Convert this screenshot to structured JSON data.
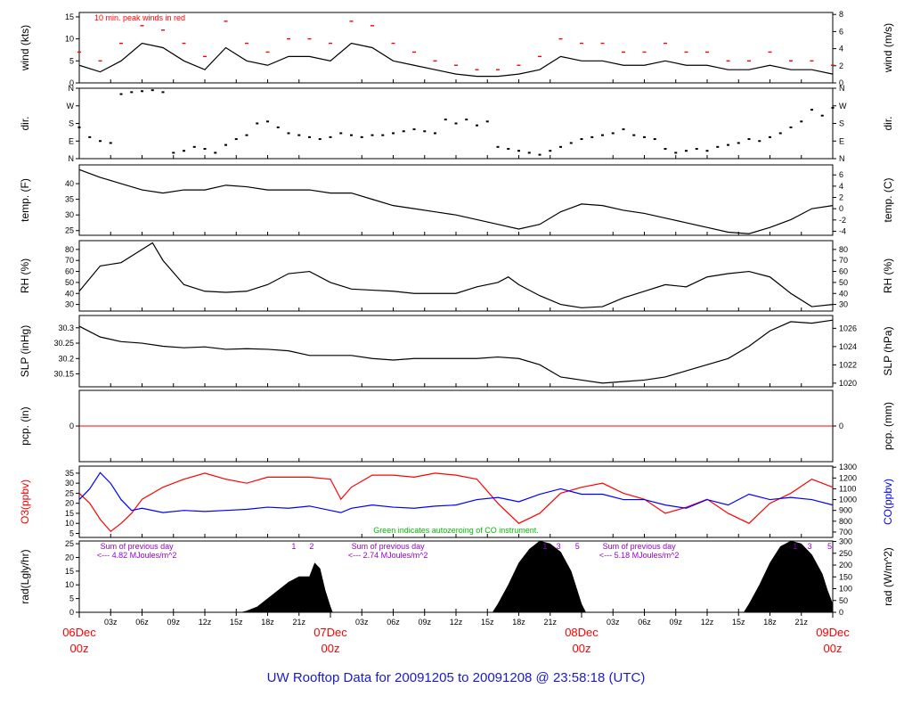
{
  "figure_title": "UW Rooftop Data for 20091205  to  20091208 @ 23:58:18  (UTC)",
  "colors": {
    "frame": "#000000",
    "red": "#ff0000",
    "blue": "#0000ff",
    "green": "#00bb00",
    "purple": "#9900cc",
    "title": "#1a1acc"
  },
  "time_axis": {
    "range_hours": [
      0,
      72
    ],
    "minor_labels": [
      "03z",
      "06z",
      "09z",
      "12z",
      "15z",
      "18z",
      "21z",
      "03z",
      "06z",
      "09z",
      "12z",
      "15z",
      "18z",
      "21z",
      "03z",
      "06z",
      "09z",
      "12z",
      "15z",
      "18z",
      "21z"
    ],
    "minor_hours": [
      3,
      6,
      9,
      12,
      15,
      18,
      21,
      27,
      30,
      33,
      36,
      39,
      42,
      45,
      51,
      54,
      57,
      60,
      63,
      66,
      69
    ],
    "major_labels": [
      {
        "date": "06Dec",
        "hour": "00z",
        "t": 0
      },
      {
        "date": "07Dec",
        "hour": "00z",
        "t": 24
      },
      {
        "date": "08Dec",
        "hour": "00z",
        "t": 48
      },
      {
        "date": "09Dec",
        "hour": "00z",
        "t": 72
      }
    ]
  },
  "chart_data": [
    {
      "type": "line",
      "id": "wind",
      "ylabel": "wind (kts)",
      "ylabel_right": "wind (m/s)",
      "ylim": [
        0,
        16
      ],
      "yticks": [
        0,
        5,
        10,
        15
      ],
      "ylim_right": [
        0,
        8.23
      ],
      "yticks_right": [
        0,
        2,
        4,
        6,
        8
      ],
      "annotation": "10 min. peak winds in red",
      "series": [
        {
          "name": "wind speed",
          "color": "#000000",
          "x": [
            0,
            2,
            4,
            6,
            8,
            10,
            12,
            14,
            16,
            18,
            20,
            22,
            24,
            26,
            28,
            30,
            32,
            34,
            36,
            38,
            40,
            42,
            44,
            46,
            48,
            50,
            52,
            54,
            56,
            58,
            60,
            62,
            64,
            66,
            68,
            70,
            72
          ],
          "y": [
            4,
            2.5,
            5,
            9,
            8,
            5,
            3,
            8,
            5,
            4,
            6,
            6,
            5,
            9,
            8,
            5,
            4,
            3,
            2,
            1.5,
            1.5,
            2,
            3,
            6,
            5,
            5,
            4,
            4,
            5,
            4,
            4,
            3,
            3,
            4,
            3,
            3,
            2
          ]
        }
      ],
      "peaks": {
        "name": "10 min. peak winds",
        "color": "#ff0000",
        "x": [
          0,
          2,
          4,
          6,
          8,
          10,
          12,
          14,
          16,
          18,
          20,
          22,
          24,
          26,
          28,
          30,
          32,
          34,
          36,
          38,
          40,
          42,
          44,
          46,
          48,
          50,
          52,
          54,
          56,
          58,
          60,
          62,
          64,
          66,
          68,
          70,
          72
        ],
        "y": [
          7,
          5,
          9,
          13,
          12,
          9,
          6,
          14,
          9,
          7,
          10,
          10,
          9,
          14,
          13,
          9,
          7,
          5,
          4,
          3,
          3,
          4,
          6,
          10,
          9,
          9,
          7,
          7,
          9,
          7,
          7,
          5,
          5,
          7,
          5,
          5,
          4
        ]
      }
    },
    {
      "type": "scatter",
      "id": "dir",
      "ylabel": "dir.",
      "ylabel_right": "dir.",
      "ylim": [
        0,
        360
      ],
      "ytick_labels": [
        "N",
        "E",
        "S",
        "W",
        "N"
      ],
      "ytick_values": [
        0,
        90,
        180,
        270,
        360
      ],
      "series": [
        {
          "name": "wind direction",
          "color": "#000000",
          "x": [
            0,
            1,
            2,
            3,
            4,
            5,
            6,
            7,
            8,
            9,
            10,
            11,
            12,
            13,
            14,
            15,
            16,
            17,
            18,
            19,
            20,
            21,
            22,
            23,
            24,
            25,
            26,
            27,
            28,
            29,
            30,
            31,
            32,
            33,
            34,
            35,
            36,
            37,
            38,
            39,
            40,
            41,
            42,
            43,
            44,
            45,
            46,
            47,
            48,
            49,
            50,
            51,
            52,
            53,
            54,
            55,
            56,
            57,
            58,
            59,
            60,
            61,
            62,
            63,
            64,
            65,
            66,
            67,
            68,
            69,
            70,
            71,
            72
          ],
          "y": [
            160,
            110,
            90,
            80,
            330,
            340,
            345,
            350,
            340,
            30,
            40,
            60,
            50,
            30,
            70,
            100,
            120,
            180,
            190,
            160,
            130,
            120,
            110,
            100,
            110,
            130,
            120,
            110,
            120,
            120,
            130,
            140,
            150,
            140,
            130,
            200,
            180,
            200,
            170,
            190,
            60,
            50,
            40,
            30,
            20,
            40,
            60,
            80,
            100,
            110,
            120,
            130,
            150,
            120,
            110,
            100,
            50,
            30,
            40,
            50,
            40,
            60,
            70,
            80,
            100,
            90,
            110,
            130,
            160,
            190,
            250,
            220,
            260
          ]
        }
      ]
    },
    {
      "type": "line",
      "id": "temp",
      "ylabel": "temp. (F)",
      "ylabel_right": "temp. (C)",
      "ylim": [
        23.5,
        46
      ],
      "yticks": [
        25,
        30,
        35,
        40
      ],
      "ylim_right": [
        -4.72,
        7.78
      ],
      "yticks_right": [
        -4,
        -2,
        0,
        2,
        4,
        6
      ],
      "series": [
        {
          "name": "temperature",
          "color": "#000000",
          "x": [
            0,
            2,
            4,
            6,
            8,
            10,
            12,
            14,
            16,
            18,
            20,
            22,
            24,
            26,
            28,
            30,
            32,
            34,
            36,
            38,
            40,
            42,
            44,
            46,
            48,
            50,
            52,
            54,
            56,
            58,
            60,
            62,
            64,
            66,
            68,
            70,
            72
          ],
          "y": [
            44.5,
            42,
            40,
            38,
            37,
            38,
            38,
            39.5,
            39,
            38,
            38,
            38,
            37,
            37,
            35,
            33,
            32,
            31,
            30,
            28.5,
            27,
            25.5,
            27,
            31,
            33.5,
            33,
            31.5,
            30.5,
            29,
            27.5,
            26,
            24.5,
            24,
            26,
            28.5,
            32,
            33
          ]
        }
      ]
    },
    {
      "type": "line",
      "id": "rh",
      "ylabel": "RH (%)",
      "ylabel_right": "RH (%)",
      "ylim": [
        24,
        88
      ],
      "yticks": [
        30,
        40,
        50,
        60,
        70,
        80
      ],
      "yticks_right": [
        30,
        40,
        50,
        60,
        70,
        80
      ],
      "series": [
        {
          "name": "relative humidity",
          "color": "#000000",
          "x": [
            0,
            2,
            4,
            6,
            7,
            8,
            10,
            12,
            14,
            16,
            18,
            20,
            22,
            24,
            26,
            28,
            30,
            32,
            34,
            36,
            38,
            40,
            41,
            42,
            44,
            46,
            48,
            50,
            52,
            54,
            56,
            58,
            60,
            62,
            64,
            66,
            68,
            70,
            72
          ],
          "y": [
            42,
            65,
            68,
            80,
            86,
            70,
            48,
            42,
            41,
            42,
            48,
            58,
            60,
            50,
            44,
            43,
            42,
            40,
            40,
            40,
            46,
            50,
            55,
            48,
            38,
            30,
            27,
            28,
            36,
            42,
            48,
            46,
            55,
            58,
            60,
            55,
            40,
            28,
            30
          ]
        }
      ]
    },
    {
      "type": "line",
      "id": "slp",
      "ylabel": "SLP (inHg)",
      "ylabel_right": "SLP (hPa)",
      "ylim": [
        30.108,
        30.34
      ],
      "yticks": [
        30.15,
        30.2,
        30.25,
        30.3
      ],
      "ylim_right": [
        1019.6,
        1027.4
      ],
      "yticks_right": [
        1020,
        1022,
        1024,
        1026
      ],
      "series": [
        {
          "name": "sea level pressure",
          "color": "#000000",
          "x": [
            0,
            2,
            4,
            6,
            8,
            10,
            12,
            14,
            16,
            18,
            20,
            22,
            24,
            26,
            28,
            30,
            32,
            34,
            36,
            38,
            40,
            42,
            44,
            46,
            48,
            50,
            52,
            54,
            56,
            58,
            60,
            62,
            64,
            66,
            68,
            70,
            72
          ],
          "y": [
            30.305,
            30.27,
            30.255,
            30.25,
            30.24,
            30.235,
            30.238,
            30.23,
            30.232,
            30.23,
            30.225,
            30.21,
            30.21,
            30.21,
            30.2,
            30.195,
            30.2,
            30.2,
            30.2,
            30.2,
            30.205,
            30.2,
            30.18,
            30.14,
            30.13,
            30.12,
            30.125,
            30.13,
            30.14,
            30.16,
            30.18,
            30.2,
            30.24,
            30.29,
            30.32,
            30.315,
            30.325
          ]
        }
      ]
    },
    {
      "type": "line",
      "id": "pcp",
      "ylabel": "pcp. (in)",
      "ylabel_right": "pcp. (mm)",
      "ylim": [
        -1,
        1
      ],
      "yticks": [
        0
      ],
      "yticks_right": [
        0
      ],
      "series": [
        {
          "name": "precipitation",
          "color": "#ff0000",
          "x": [
            0,
            72
          ],
          "y": [
            0,
            0
          ]
        }
      ]
    },
    {
      "type": "line",
      "id": "chem",
      "ylabel": "O3(ppbv)",
      "ylabel_right": "CO(ppbv)",
      "ylim": [
        3,
        38.5
      ],
      "yticks": [
        5,
        10,
        15,
        20,
        25,
        30,
        35
      ],
      "ylim_right": [
        650,
        1310
      ],
      "yticks_right": [
        700,
        800,
        900,
        1000,
        1100,
        1200,
        1300
      ],
      "annotation": "Green indicates autozeroing of CO instrument.",
      "series": [
        {
          "name": "O3",
          "axis": "left",
          "color": "#ff0000",
          "x": [
            0,
            1,
            2,
            3,
            4,
            5,
            6,
            8,
            10,
            12,
            14,
            16,
            18,
            20,
            22,
            24,
            25,
            26,
            28,
            30,
            32,
            34,
            36,
            38,
            40,
            42,
            44,
            46,
            48,
            50,
            52,
            54,
            56,
            58,
            60,
            62,
            64,
            66,
            68,
            70,
            72
          ],
          "y": [
            25,
            20,
            12,
            6,
            10,
            15,
            22,
            28,
            32,
            35,
            32,
            30,
            33,
            33,
            33,
            32,
            22,
            28,
            34,
            34,
            33,
            35,
            34,
            32,
            20,
            10,
            15,
            25,
            28,
            30,
            25,
            22,
            15,
            18,
            22,
            15,
            10,
            20,
            25,
            32,
            28
          ]
        },
        {
          "name": "CO",
          "axis": "right",
          "color": "#0000ff",
          "x": [
            0,
            1,
            2,
            3,
            4,
            5,
            6,
            8,
            10,
            12,
            14,
            16,
            18,
            20,
            22,
            24,
            25,
            26,
            28,
            30,
            32,
            34,
            36,
            38,
            40,
            42,
            44,
            46,
            48,
            50,
            52,
            54,
            56,
            58,
            60,
            62,
            64,
            66,
            68,
            70,
            72
          ],
          "y": [
            1000,
            1100,
            1250,
            1150,
            1000,
            900,
            920,
            880,
            900,
            890,
            900,
            910,
            930,
            920,
            940,
            900,
            880,
            920,
            950,
            930,
            920,
            940,
            950,
            1000,
            1020,
            980,
            1050,
            1100,
            1050,
            1050,
            1000,
            1000,
            950,
            920,
            1000,
            950,
            1050,
            1000,
            1020,
            1000,
            950
          ]
        }
      ]
    },
    {
      "type": "area",
      "id": "rad",
      "ylabel": "rad(Lgly/hr)",
      "ylabel_right": "rad (W/m^2)",
      "ylim": [
        0,
        26
      ],
      "yticks": [
        0,
        5,
        10,
        15,
        20,
        25
      ],
      "ylim_right": [
        0,
        302
      ],
      "yticks_right": [
        0,
        50,
        100,
        150,
        200,
        250,
        300
      ],
      "series": [
        {
          "name": "solar radiation",
          "color": "#000000",
          "x": [
            0,
            15.5,
            16,
            17,
            18,
            19,
            20,
            21,
            22,
            22.5,
            23,
            23.5,
            24,
            24.2,
            39.5,
            40,
            41,
            42,
            43,
            44,
            45,
            46,
            47,
            47.5,
            48,
            48.4,
            63.5,
            64,
            65,
            66,
            67,
            68,
            69,
            70,
            71,
            71.5,
            72
          ],
          "y": [
            0,
            0,
            0.5,
            2,
            5,
            8,
            11,
            13,
            13,
            18,
            16,
            8,
            2,
            0,
            0,
            3,
            10,
            18,
            23,
            26,
            25,
            22,
            15,
            9,
            3,
            0,
            0,
            3,
            10,
            18,
            24,
            26,
            25,
            21,
            14,
            8,
            3
          ]
        }
      ],
      "annotations": [
        {
          "text": "Sum of previous day",
          "t": 5.5,
          "row": 0
        },
        {
          "text": "<--- 4.82 MJoules/m^2",
          "t": 5.5,
          "row": 1
        },
        {
          "text": "Sum of previous day",
          "t": 29.5,
          "row": 0
        },
        {
          "text": "<--- 2.74 MJoules/m^2",
          "t": 29.5,
          "row": 1
        },
        {
          "text": "Sum of previous day",
          "t": 53.5,
          "row": 0
        },
        {
          "text": "<--- 5.18 MJoules/m^2",
          "t": 53.5,
          "row": 1
        }
      ],
      "markers": [
        {
          "label": "1",
          "t": 20.5
        },
        {
          "label": "2",
          "t": 22.2
        },
        {
          "label": "1",
          "t": 44.5
        },
        {
          "label": "3",
          "t": 45.8
        },
        {
          "label": "5",
          "t": 47.6
        },
        {
          "label": "1",
          "t": 68.4
        },
        {
          "label": "3",
          "t": 69.8
        },
        {
          "label": "5",
          "t": 71.7
        }
      ]
    }
  ]
}
